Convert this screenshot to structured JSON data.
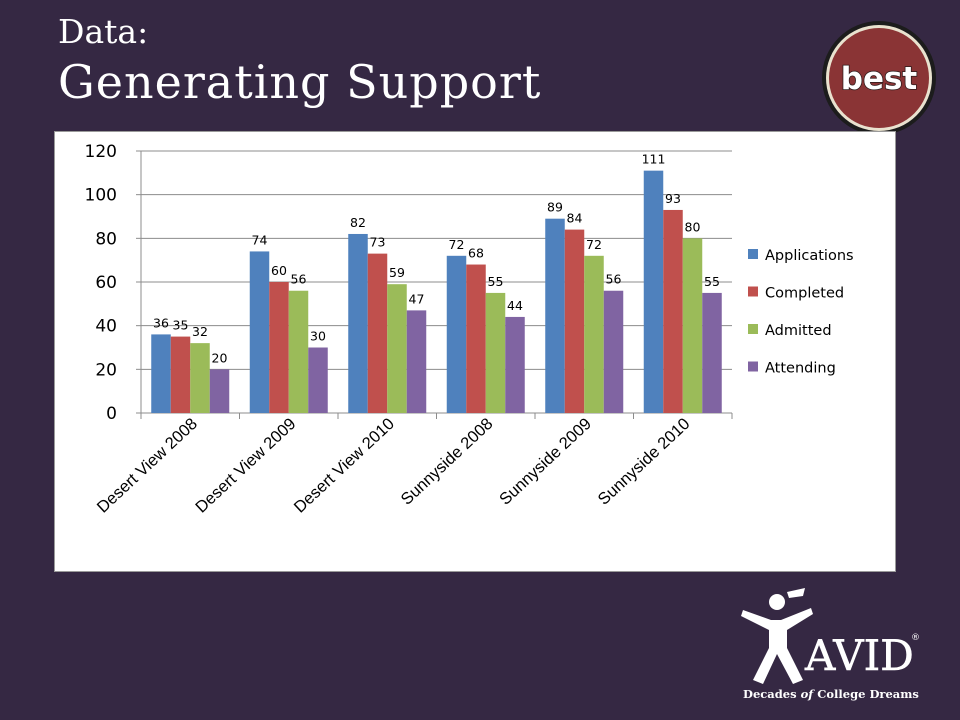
{
  "slide": {
    "title_line1": "Data:",
    "title_line2": "Generating Support"
  },
  "badge": {
    "text": "best"
  },
  "logo": {
    "brand": "AVID",
    "registered": "®",
    "tagline": "Decades of College Dreams",
    "tagline_pre": "Decades ",
    "tagline_em": "of",
    "tagline_post": " College Dreams"
  },
  "colors": {
    "background": "#352843",
    "badge_red": "#8a3435",
    "applications": "#4f81bd",
    "completed": "#c0504d",
    "admitted": "#9bbb59",
    "attending": "#8064a2"
  },
  "chart_data": {
    "type": "bar",
    "title": "",
    "xlabel": "",
    "ylabel": "",
    "ylim": [
      0,
      120
    ],
    "yticks": [
      0,
      20,
      40,
      60,
      80,
      100,
      120
    ],
    "grid": true,
    "legend_position": "right",
    "categories": [
      "Desert View 2008",
      "Desert View 2009",
      "Desert View 2010",
      "Sunnyside 2008",
      "Sunnyside 2009",
      "Sunnyside 2010"
    ],
    "series": [
      {
        "name": "Applications",
        "color": "#4f81bd",
        "values": [
          36,
          74,
          82,
          72,
          89,
          111
        ]
      },
      {
        "name": "Completed",
        "color": "#c0504d",
        "values": [
          35,
          60,
          73,
          68,
          84,
          93
        ]
      },
      {
        "name": "Admitted",
        "color": "#9bbb59",
        "values": [
          32,
          56,
          59,
          55,
          72,
          80
        ]
      },
      {
        "name": "Attending",
        "color": "#8064a2",
        "values": [
          20,
          30,
          47,
          44,
          56,
          55
        ]
      }
    ]
  }
}
